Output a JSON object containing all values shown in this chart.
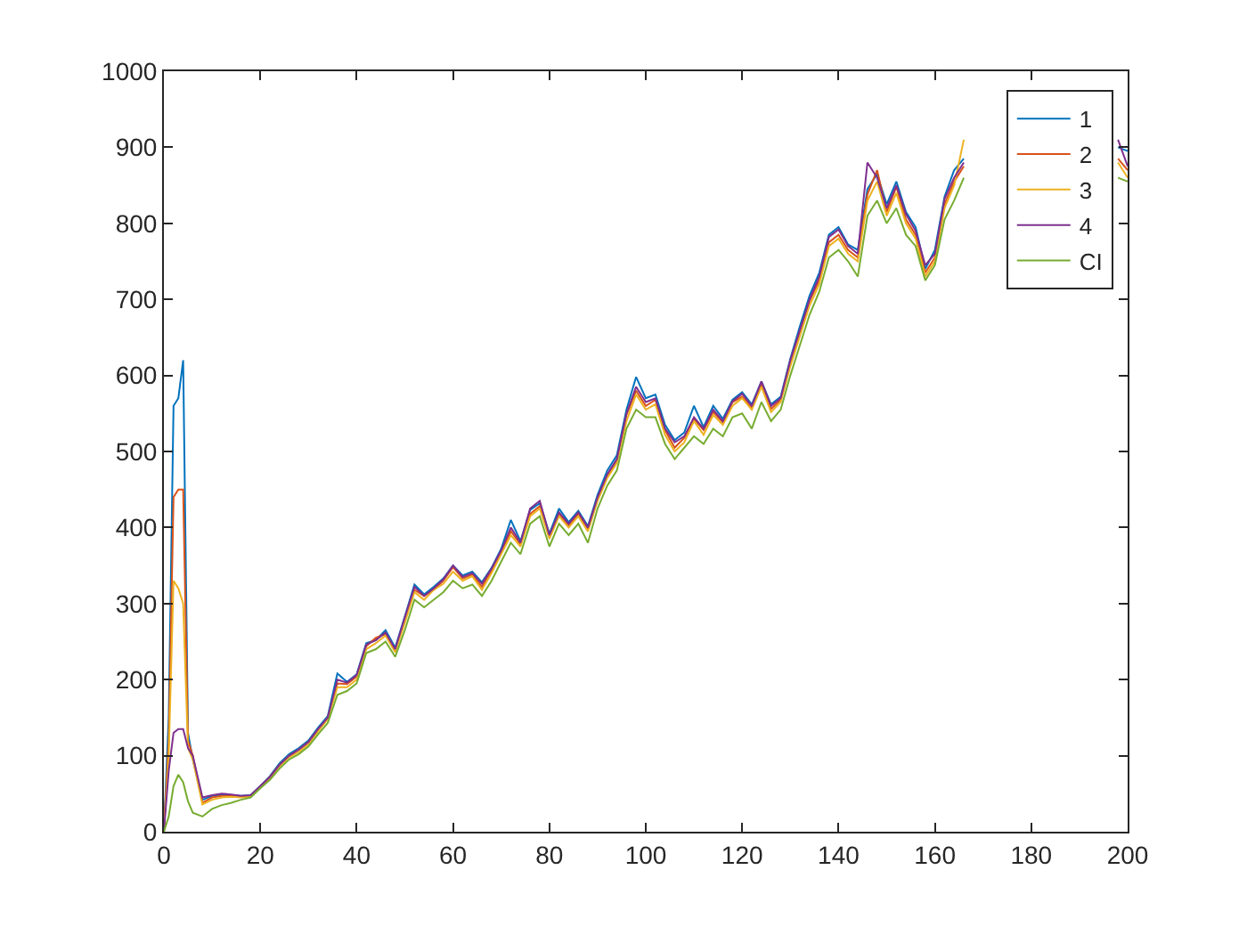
{
  "chart_data": {
    "type": "line",
    "x": [
      0,
      1,
      2,
      3,
      4,
      5,
      6,
      8,
      10,
      12,
      14,
      16,
      18,
      20,
      22,
      24,
      26,
      28,
      30,
      32,
      34,
      36,
      38,
      40,
      42,
      44,
      46,
      48,
      50,
      52,
      54,
      56,
      58,
      60,
      62,
      64,
      66,
      68,
      70,
      72,
      74,
      76,
      78,
      80,
      82,
      84,
      86,
      88,
      90,
      92,
      94,
      96,
      98,
      100,
      102,
      104,
      106,
      108,
      110,
      112,
      114,
      116,
      118,
      120,
      122,
      124,
      126,
      128,
      130,
      132,
      134,
      136,
      138,
      140,
      142,
      144,
      146,
      148,
      150,
      152,
      154,
      156,
      158,
      160,
      162,
      164,
      166,
      168,
      170,
      172,
      174,
      176,
      178,
      180,
      182,
      184,
      186,
      188,
      190,
      192,
      194,
      196,
      198,
      200
    ],
    "xlim": [
      0,
      200
    ],
    "xticks": [
      0,
      20,
      40,
      60,
      80,
      100,
      120,
      140,
      160,
      180,
      200
    ],
    "ylim": [
      0,
      1000
    ],
    "yticks": [
      0,
      100,
      200,
      300,
      400,
      500,
      600,
      700,
      800,
      900,
      1000
    ],
    "grid": false,
    "legend": "top right",
    "marker": "none",
    "line_style": "solid",
    "series": [
      {
        "name": "1",
        "color": "#0072bd",
        "values": [
          0,
          150,
          560,
          570,
          620,
          130,
          95,
          42,
          47,
          49,
          48,
          47,
          48,
          60,
          73,
          90,
          102,
          110,
          120,
          137,
          152,
          208,
          197,
          207,
          248,
          252,
          265,
          242,
          283,
          325,
          312,
          322,
          333,
          350,
          337,
          342,
          328,
          347,
          372,
          410,
          382,
          423,
          432,
          392,
          425,
          407,
          422,
          402,
          443,
          475,
          495,
          555,
          598,
          570,
          575,
          535,
          515,
          525,
          560,
          532,
          560,
          543,
          568,
          578,
          562,
          592,
          562,
          572,
          622,
          665,
          705,
          735,
          785,
          795,
          772,
          765,
          845,
          865,
          825,
          855,
          815,
          795,
          740,
          765,
          835,
          870,
          885,
          null,
          null,
          null,
          null,
          null,
          null,
          null,
          null,
          null,
          null,
          null,
          null,
          null,
          null,
          null,
          900,
          895
        ]
      },
      {
        "name": "2",
        "color": "#d95319",
        "values": [
          0,
          120,
          440,
          450,
          450,
          120,
          100,
          38,
          45,
          47,
          47,
          46,
          47,
          59,
          72,
          88,
          100,
          108,
          118,
          134,
          150,
          195,
          194,
          204,
          244,
          255,
          260,
          238,
          278,
          318,
          310,
          318,
          330,
          348,
          333,
          338,
          322,
          343,
          368,
          395,
          378,
          418,
          428,
          388,
          418,
          403,
          418,
          398,
          438,
          468,
          488,
          548,
          580,
          560,
          568,
          528,
          505,
          518,
          543,
          528,
          552,
          538,
          565,
          572,
          558,
          588,
          556,
          568,
          618,
          658,
          698,
          725,
          775,
          785,
          765,
          755,
          838,
          870,
          815,
          848,
          805,
          785,
          735,
          755,
          825,
          855,
          875,
          null,
          null,
          null,
          null,
          null,
          null,
          null,
          null,
          null,
          null,
          null,
          null,
          null,
          null,
          null,
          885,
          870
        ]
      },
      {
        "name": "3",
        "color": "#edb120",
        "values": [
          0,
          100,
          330,
          320,
          300,
          110,
          95,
          36,
          42,
          45,
          46,
          45,
          46,
          58,
          70,
          86,
          98,
          105,
          115,
          132,
          148,
          190,
          190,
          200,
          240,
          248,
          258,
          236,
          275,
          315,
          305,
          318,
          326,
          342,
          330,
          336,
          318,
          340,
          365,
          390,
          375,
          415,
          425,
          385,
          415,
          400,
          415,
          395,
          435,
          465,
          485,
          540,
          575,
          555,
          562,
          522,
          500,
          512,
          540,
          522,
          548,
          535,
          560,
          570,
          555,
          585,
          552,
          565,
          612,
          652,
          692,
          720,
          770,
          780,
          760,
          750,
          830,
          855,
          810,
          840,
          800,
          780,
          730,
          750,
          820,
          850,
          910,
          null,
          null,
          null,
          null,
          null,
          null,
          null,
          null,
          null,
          null,
          null,
          null,
          null,
          null,
          null,
          880,
          860
        ]
      },
      {
        "name": "4",
        "color": "#7e2f8e",
        "values": [
          0,
          80,
          130,
          135,
          135,
          110,
          100,
          45,
          48,
          50,
          49,
          47,
          48,
          60,
          72,
          88,
          100,
          108,
          118,
          135,
          150,
          200,
          196,
          206,
          246,
          252,
          262,
          240,
          282,
          322,
          310,
          320,
          332,
          350,
          335,
          340,
          326,
          346,
          370,
          400,
          380,
          425,
          435,
          390,
          420,
          405,
          420,
          400,
          440,
          470,
          490,
          550,
          585,
          565,
          570,
          530,
          512,
          520,
          545,
          530,
          555,
          540,
          566,
          576,
          560,
          592,
          560,
          570,
          620,
          660,
          700,
          730,
          782,
          792,
          770,
          760,
          880,
          860,
          820,
          850,
          812,
          790,
          745,
          760,
          832,
          860,
          880,
          null,
          null,
          null,
          null,
          null,
          null,
          null,
          null,
          null,
          null,
          null,
          null,
          null,
          null,
          null,
          910,
          875
        ]
      },
      {
        "name": "CI",
        "color": "#77ac30",
        "values": [
          0,
          20,
          60,
          75,
          65,
          40,
          25,
          20,
          30,
          35,
          38,
          42,
          45,
          57,
          68,
          83,
          95,
          102,
          112,
          128,
          143,
          180,
          185,
          195,
          235,
          240,
          250,
          230,
          265,
          305,
          295,
          305,
          315,
          330,
          320,
          325,
          310,
          330,
          355,
          380,
          365,
          405,
          415,
          375,
          405,
          390,
          405,
          380,
          425,
          455,
          475,
          530,
          555,
          545,
          545,
          510,
          490,
          505,
          520,
          510,
          530,
          520,
          545,
          550,
          530,
          565,
          540,
          555,
          600,
          640,
          680,
          710,
          755,
          765,
          750,
          730,
          810,
          830,
          800,
          820,
          785,
          770,
          725,
          745,
          805,
          830,
          860,
          null,
          null,
          null,
          null,
          null,
          null,
          null,
          null,
          null,
          null,
          null,
          null,
          null,
          null,
          null,
          860,
          855
        ]
      }
    ]
  }
}
